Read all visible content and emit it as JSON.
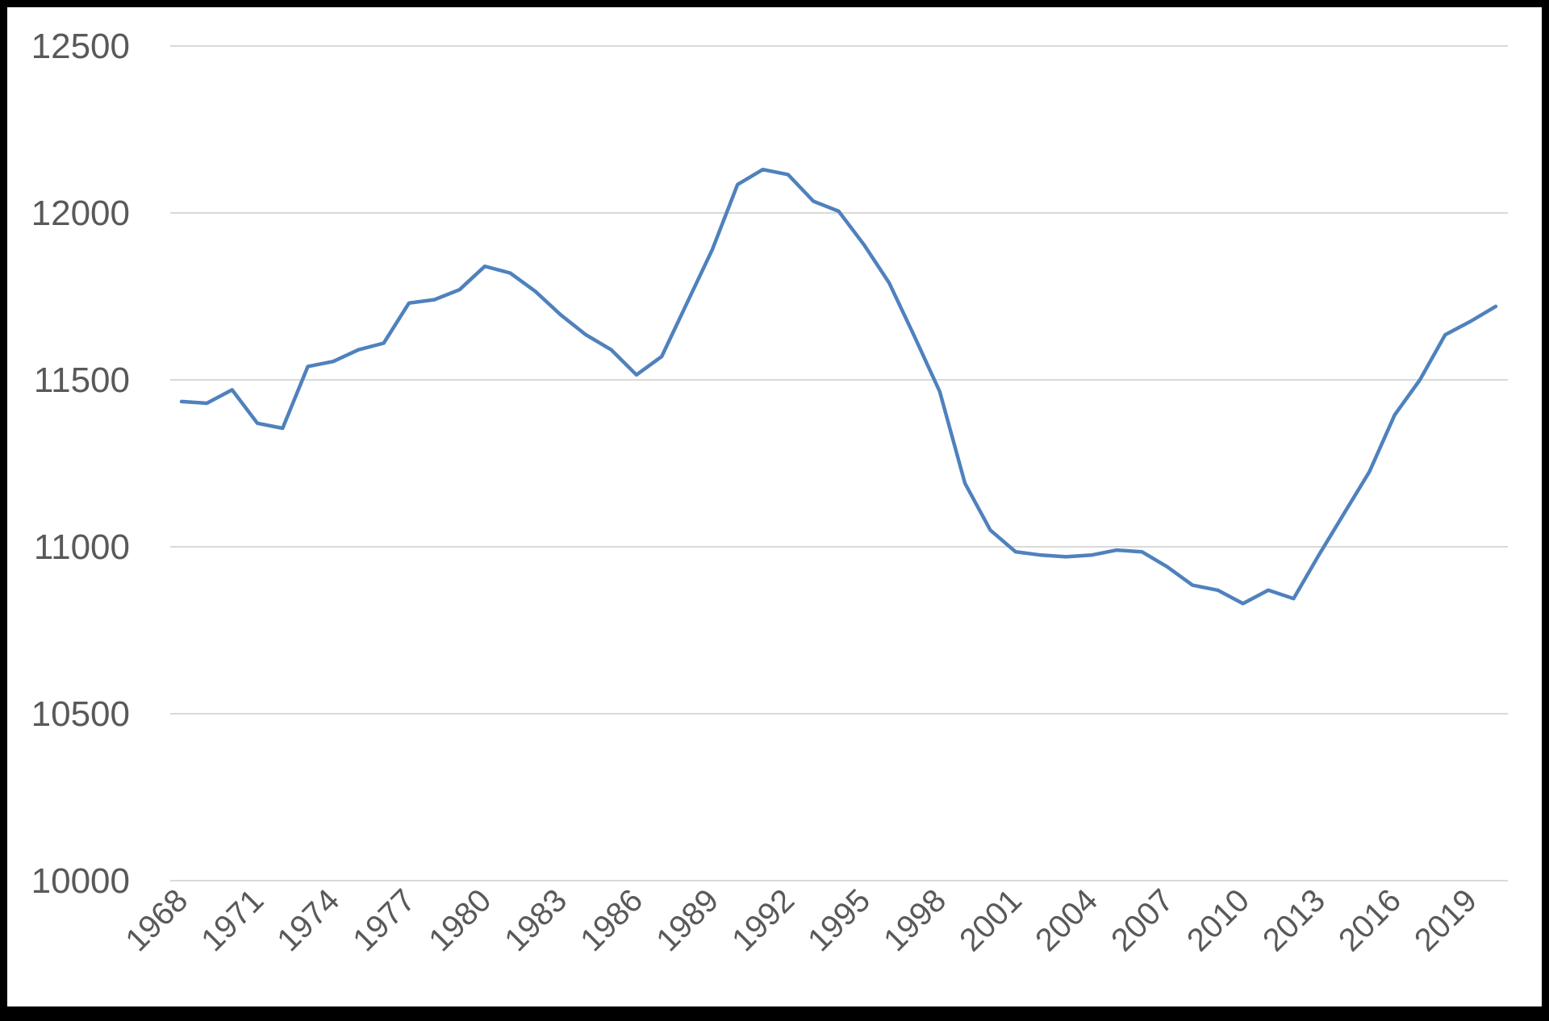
{
  "chart_data": {
    "type": "line",
    "title": "",
    "xlabel": "",
    "ylabel": "",
    "ylim": [
      10000,
      12500
    ],
    "yticks": [
      10000,
      10500,
      11000,
      11500,
      12000,
      12500
    ],
    "xtick_labels": [
      "1968",
      "1971",
      "1974",
      "1977",
      "1980",
      "1983",
      "1986",
      "1989",
      "1992",
      "1995",
      "1998",
      "2001",
      "2004",
      "2007",
      "2010",
      "2013",
      "2016",
      "2019"
    ],
    "grid": true,
    "legend": "none",
    "color": "#4f81bd",
    "x": [
      1968,
      1969,
      1970,
      1971,
      1972,
      1973,
      1974,
      1975,
      1976,
      1977,
      1978,
      1979,
      1980,
      1981,
      1982,
      1983,
      1984,
      1985,
      1986,
      1987,
      1988,
      1989,
      1990,
      1991,
      1992,
      1993,
      1994,
      1995,
      1996,
      1997,
      1998,
      1999,
      2000,
      2001,
      2002,
      2003,
      2004,
      2005,
      2006,
      2007,
      2008,
      2009,
      2010,
      2011,
      2012,
      2013,
      2014,
      2015,
      2016,
      2017,
      2018,
      2019,
      2020
    ],
    "series": [
      {
        "values": [
          11435,
          11430,
          11470,
          11370,
          11355,
          11540,
          11555,
          11590,
          11610,
          11730,
          11740,
          11770,
          11840,
          11820,
          11765,
          11695,
          11635,
          11590,
          11515,
          11570,
          11730,
          11890,
          12085,
          12130,
          12115,
          12035,
          12005,
          11905,
          11790,
          11630,
          11465,
          11190,
          11050,
          10985,
          10975,
          10970,
          10975,
          10990,
          10985,
          10940,
          10885,
          10870,
          10830,
          10870,
          10845,
          10975,
          11100,
          11225,
          11395,
          11500,
          11635,
          11675,
          11720
        ]
      }
    ]
  }
}
